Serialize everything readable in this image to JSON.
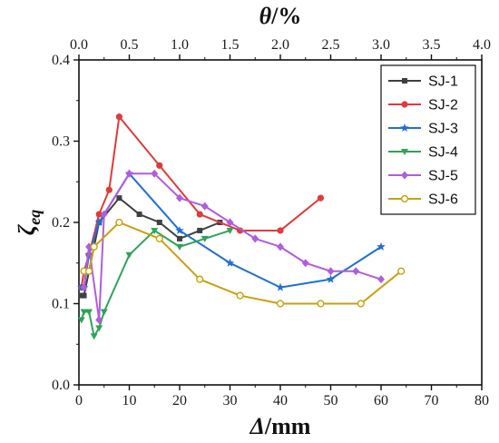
{
  "chart_data": {
    "type": "line",
    "xlabel_italic": "Δ",
    "xlabel_unit": "/mm",
    "ylabel_main": "ζ",
    "ylabel_sub": "eq",
    "top_xlabel_italic": "θ",
    "top_xlabel_unit": "/%",
    "xlim": [
      0,
      80
    ],
    "ylim": [
      0.0,
      0.4
    ],
    "top_xlim": [
      0.0,
      4.0
    ],
    "x_ticks": [
      "0",
      "10",
      "20",
      "30",
      "40",
      "50",
      "60",
      "70",
      "80"
    ],
    "y_ticks": [
      "0.0",
      "0.1",
      "0.2",
      "0.3",
      "0.4"
    ],
    "top_x_ticks": [
      "0.0",
      "0.5",
      "1.0",
      "1.5",
      "2.0",
      "2.5",
      "3.0",
      "3.5",
      "4.0"
    ],
    "grid": false,
    "legend_position": "top-right",
    "series": [
      {
        "name": "SJ-1",
        "color": "#404040",
        "marker": "square",
        "x": [
          0.5,
          1,
          2,
          4,
          8,
          12,
          16,
          20,
          24,
          28
        ],
        "y": [
          0.11,
          0.11,
          0.14,
          0.2,
          0.23,
          0.21,
          0.2,
          0.18,
          0.19,
          0.2
        ]
      },
      {
        "name": "SJ-2",
        "color": "#e03a3a",
        "marker": "circle",
        "x": [
          0.5,
          1,
          2,
          4,
          6,
          8,
          16,
          24,
          32,
          40,
          48
        ],
        "y": [
          0.12,
          0.14,
          0.16,
          0.21,
          0.24,
          0.33,
          0.27,
          0.21,
          0.19,
          0.19,
          0.23
        ]
      },
      {
        "name": "SJ-3",
        "color": "#1f6fd6",
        "marker": "star",
        "x": [
          0.5,
          1,
          2,
          4,
          10,
          20,
          30,
          40,
          50,
          60
        ],
        "y": [
          0.12,
          0.12,
          0.16,
          0.2,
          0.26,
          0.19,
          0.15,
          0.12,
          0.13,
          0.17
        ]
      },
      {
        "name": "SJ-4",
        "color": "#2ea35a",
        "marker": "triangle-down",
        "x": [
          0.5,
          1,
          2,
          3,
          4,
          5,
          10,
          15,
          20,
          25,
          30
        ],
        "y": [
          0.08,
          0.09,
          0.09,
          0.06,
          0.07,
          0.09,
          0.16,
          0.19,
          0.17,
          0.18,
          0.19
        ]
      },
      {
        "name": "SJ-5",
        "color": "#b15ce0",
        "marker": "diamond",
        "x": [
          1,
          2,
          4,
          5,
          10,
          15,
          20,
          25,
          30,
          35,
          40,
          45,
          50,
          55,
          60
        ],
        "y": [
          0.12,
          0.17,
          0.08,
          0.21,
          0.26,
          0.26,
          0.23,
          0.22,
          0.2,
          0.18,
          0.17,
          0.15,
          0.14,
          0.14,
          0.13
        ]
      },
      {
        "name": "SJ-6",
        "color": "#c9a00c",
        "marker": "open-circle",
        "x": [
          1,
          2,
          3,
          8,
          16,
          24,
          32,
          40,
          48,
          56,
          64
        ],
        "y": [
          0.14,
          0.14,
          0.17,
          0.2,
          0.18,
          0.13,
          0.11,
          0.1,
          0.1,
          0.1,
          0.14
        ]
      }
    ]
  }
}
